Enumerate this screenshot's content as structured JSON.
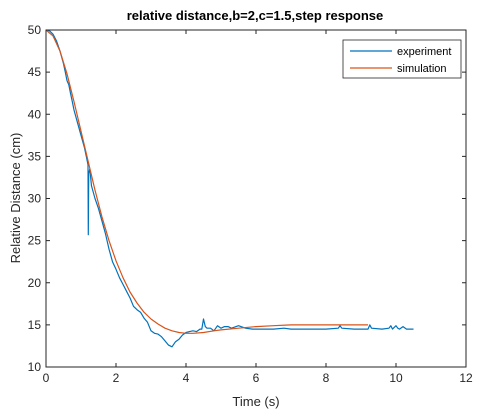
{
  "chart_data": {
    "type": "line",
    "title": "relative distance,b=2,c=1.5,step response",
    "xlabel": "Time (s)",
    "ylabel": "Relative Distance (cm)",
    "xlim": [
      0,
      12
    ],
    "ylim": [
      10,
      50
    ],
    "xticks": [
      0,
      2,
      4,
      6,
      8,
      10,
      12
    ],
    "yticks": [
      10,
      15,
      20,
      25,
      30,
      35,
      40,
      45,
      50
    ],
    "grid": false,
    "legend_position": "top-right",
    "series": [
      {
        "name": "experiment",
        "color": "#0072BD",
        "x": [
          0,
          0.1,
          0.2,
          0.3,
          0.4,
          0.5,
          0.55,
          0.6,
          0.65,
          0.7,
          0.75,
          0.8,
          0.9,
          1.0,
          1.1,
          1.15,
          1.2,
          1.21,
          1.22,
          1.25,
          1.3,
          1.4,
          1.5,
          1.6,
          1.7,
          1.8,
          1.9,
          2.0,
          2.1,
          2.2,
          2.3,
          2.4,
          2.5,
          2.6,
          2.7,
          2.8,
          2.9,
          3.0,
          3.1,
          3.2,
          3.3,
          3.4,
          3.5,
          3.6,
          3.7,
          3.8,
          3.9,
          4.0,
          4.1,
          4.2,
          4.3,
          4.4,
          4.45,
          4.5,
          4.55,
          4.6,
          4.7,
          4.8,
          4.9,
          5.0,
          5.1,
          5.2,
          5.3,
          5.5,
          5.7,
          5.9,
          6.1,
          6.3,
          6.5,
          6.8,
          7.0,
          7.5,
          8.0,
          8.35,
          8.4,
          8.45,
          8.8,
          9.2,
          9.25,
          9.3,
          9.6,
          9.8,
          9.85,
          9.9,
          10.0,
          10.05,
          10.1,
          10.2,
          10.3,
          10.5
        ],
        "y": [
          50.0,
          49.9,
          49.5,
          48.7,
          47.5,
          46.0,
          45.0,
          44.0,
          43.5,
          42.5,
          41.5,
          40.5,
          39.0,
          37.5,
          36.0,
          35.0,
          34.0,
          25.7,
          33.0,
          33.5,
          31.5,
          30.0,
          28.8,
          27.3,
          25.8,
          24.0,
          22.5,
          21.6,
          20.6,
          19.8,
          19.0,
          18.2,
          17.2,
          16.8,
          16.5,
          15.8,
          15.3,
          14.3,
          14.0,
          13.9,
          13.6,
          13.1,
          12.6,
          12.4,
          13.0,
          13.3,
          13.8,
          14.1,
          14.2,
          14.3,
          14.2,
          14.5,
          14.5,
          15.7,
          14.8,
          14.6,
          14.6,
          14.3,
          14.9,
          14.6,
          14.8,
          14.8,
          14.6,
          14.9,
          14.6,
          14.5,
          14.5,
          14.5,
          14.5,
          14.6,
          14.5,
          14.5,
          14.5,
          14.6,
          14.9,
          14.6,
          14.5,
          14.5,
          15.0,
          14.6,
          14.5,
          14.6,
          14.9,
          14.5,
          14.9,
          14.6,
          14.5,
          14.8,
          14.5,
          14.5
        ]
      },
      {
        "name": "simulation",
        "color": "#D95319",
        "x": [
          0,
          0.2,
          0.4,
          0.6,
          0.8,
          1.0,
          1.2,
          1.4,
          1.6,
          1.8,
          2.0,
          2.2,
          2.4,
          2.6,
          2.8,
          3.0,
          3.2,
          3.4,
          3.6,
          3.8,
          4.0,
          4.2,
          4.5,
          4.8,
          5.0,
          5.5,
          6.0,
          6.5,
          7.0,
          7.5,
          8.0,
          8.5,
          9.0,
          9.2
        ],
        "y": [
          50.0,
          49.3,
          47.5,
          44.8,
          41.5,
          38.0,
          34.5,
          31.0,
          27.8,
          25.0,
          22.6,
          20.6,
          18.9,
          17.6,
          16.5,
          15.7,
          15.1,
          14.6,
          14.3,
          14.1,
          14.0,
          14.0,
          14.1,
          14.3,
          14.4,
          14.6,
          14.8,
          14.9,
          15.0,
          15.0,
          15.0,
          15.0,
          15.0,
          15.0
        ]
      }
    ]
  }
}
